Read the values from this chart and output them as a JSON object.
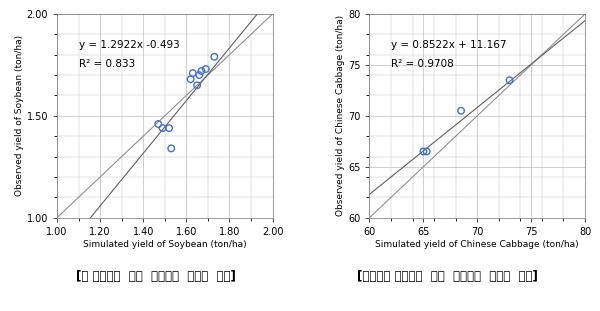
{
  "soybean": {
    "scatter_x": [
      1.47,
      1.49,
      1.52,
      1.53,
      1.62,
      1.63,
      1.65,
      1.66,
      1.67,
      1.69,
      1.73
    ],
    "scatter_y": [
      1.46,
      1.44,
      1.44,
      1.34,
      1.68,
      1.71,
      1.65,
      1.7,
      1.72,
      1.73,
      1.79
    ],
    "eq_text": "y = 1.2922x -0.493",
    "r2_text": "R² = 0.833",
    "slope": 1.2922,
    "intercept": -0.493,
    "xlim": [
      1.0,
      2.0
    ],
    "ylim": [
      1.0,
      2.0
    ],
    "xticks": [
      1.0,
      1.2,
      1.4,
      1.6,
      1.8,
      2.0
    ],
    "yticks": [
      1.0,
      1.5,
      2.0
    ],
    "xlabel": "Simulated yield of Soybean (ton/ha)",
    "ylabel": "Observed yield of Soybean (ton/ha)",
    "caption": "[콩 생산량에  대한  예측치와  통계치  비교]"
  },
  "cabbage": {
    "scatter_x": [
      65.0,
      65.3,
      68.5,
      73.0
    ],
    "scatter_y": [
      66.5,
      66.5,
      70.5,
      73.5
    ],
    "eq_text": "y = 0.8522x + 11.167",
    "r2_text": "R² = 0.9708",
    "slope": 0.8522,
    "intercept": 11.167,
    "xlim": [
      60,
      80
    ],
    "ylim": [
      60,
      80
    ],
    "xticks": [
      60,
      65,
      70,
      75,
      80
    ],
    "yticks": [
      60,
      65,
      70,
      75,
      80
    ],
    "xlabel": "Simulated yield of Chinese Cabbage (ton/ha)",
    "ylabel": "Observed yield of Chinese Cabbage (ton/ha)",
    "caption": "[가을배추 생산량에  대한  예측치와  통계치  비교]"
  },
  "scatter_color": "#4472C4",
  "reg_line_color": "#606060",
  "diag_line_color": "#909090",
  "background_color": "#ffffff",
  "grid_color": "#bbbbbb",
  "font_size_label": 6.5,
  "font_size_eq": 7.5,
  "font_size_caption": 8.5,
  "font_size_tick": 7.0
}
